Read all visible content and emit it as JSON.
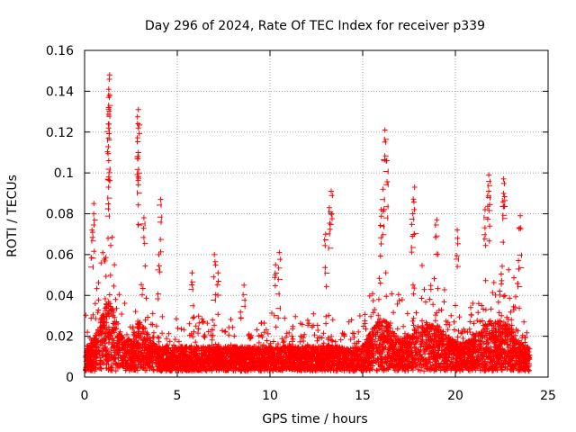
{
  "chart_data": {
    "type": "scatter",
    "title": "Day 296 of 2024, Rate Of TEC Index for receiver p339",
    "xlabel": "GPS time / hours",
    "ylabel": "ROTI / TECUs",
    "xlim": [
      0,
      25
    ],
    "ylim": [
      0,
      0.16
    ],
    "x_ticks": [
      "0",
      "5",
      "10",
      "15",
      "20",
      "25"
    ],
    "y_ticks": [
      "0",
      "0.02",
      "0.04",
      "0.06",
      "0.08",
      "0.1",
      "0.12",
      "0.14",
      "0.16"
    ],
    "grid": true,
    "marker": "+",
    "series_color": "#ff0000",
    "peaks": [
      {
        "x": 1.35,
        "y": 0.148
      },
      {
        "x": 1.3,
        "y": 0.141
      },
      {
        "x": 1.3,
        "y": 0.132
      },
      {
        "x": 1.3,
        "y": 0.122
      },
      {
        "x": 1.3,
        "y": 0.106
      },
      {
        "x": 1.3,
        "y": 0.098
      },
      {
        "x": 0.5,
        "y": 0.085
      },
      {
        "x": 0.4,
        "y": 0.072
      },
      {
        "x": 2.9,
        "y": 0.131
      },
      {
        "x": 2.9,
        "y": 0.122
      },
      {
        "x": 2.9,
        "y": 0.11
      },
      {
        "x": 2.9,
        "y": 0.098
      },
      {
        "x": 3.2,
        "y": 0.078
      },
      {
        "x": 4.1,
        "y": 0.087
      },
      {
        "x": 4.0,
        "y": 0.06
      },
      {
        "x": 5.8,
        "y": 0.051
      },
      {
        "x": 7.0,
        "y": 0.06
      },
      {
        "x": 7.2,
        "y": 0.051
      },
      {
        "x": 8.6,
        "y": 0.045
      },
      {
        "x": 10.5,
        "y": 0.061
      },
      {
        "x": 10.3,
        "y": 0.055
      },
      {
        "x": 13.3,
        "y": 0.091
      },
      {
        "x": 13.2,
        "y": 0.083
      },
      {
        "x": 13.0,
        "y": 0.07
      },
      {
        "x": 16.2,
        "y": 0.121
      },
      {
        "x": 16.3,
        "y": 0.106
      },
      {
        "x": 16.1,
        "y": 0.092
      },
      {
        "x": 16.0,
        "y": 0.082
      },
      {
        "x": 17.8,
        "y": 0.093
      },
      {
        "x": 17.7,
        "y": 0.08
      },
      {
        "x": 19.0,
        "y": 0.077
      },
      {
        "x": 20.1,
        "y": 0.072
      },
      {
        "x": 21.8,
        "y": 0.099
      },
      {
        "x": 21.8,
        "y": 0.091
      },
      {
        "x": 21.6,
        "y": 0.082
      },
      {
        "x": 22.6,
        "y": 0.097
      },
      {
        "x": 22.6,
        "y": 0.09
      },
      {
        "x": 23.5,
        "y": 0.079
      },
      {
        "x": 23.4,
        "y": 0.057
      }
    ]
  }
}
